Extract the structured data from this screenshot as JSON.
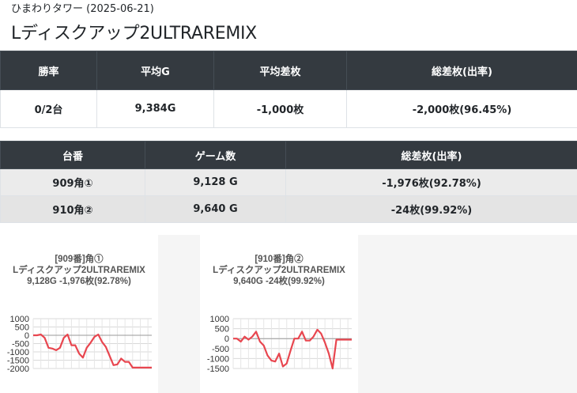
{
  "header": {
    "subtitle": "ひまわりタワー (2025-06-21)",
    "title": "Lディスクアップ2ULTRAREMIX"
  },
  "summary": {
    "headers": [
      "勝率",
      "平均G",
      "平均差枚",
      "総差枚(出率)"
    ],
    "values": [
      "0/2台",
      "9,384G",
      "-1,000枚",
      "-2,000枚(96.45%)"
    ]
  },
  "machines": {
    "headers": [
      "台番",
      "ゲーム数",
      "総差枚(出率)"
    ],
    "rows": [
      [
        "909角①",
        "9,128 G",
        "-1,976枚(92.78%)"
      ],
      [
        "910角②",
        "9,640 G",
        "-24枚(99.92%)"
      ]
    ]
  },
  "chart_data": [
    {
      "type": "line",
      "title_lines": [
        "[909番]角①",
        "Lディスクアップ2ULTRAREMIX",
        "9,128G -1,976枚(92.78%)"
      ],
      "color": "#e8464f",
      "ylim": [
        -2000,
        1000
      ],
      "yticks": [
        1000,
        500,
        0,
        -500,
        -1000,
        -1500,
        -2000
      ],
      "ytick_labels": [
        "1000",
        "500",
        "0",
        "-500",
        "-1000",
        "-1500",
        "-2000"
      ],
      "x": [
        0,
        1,
        2,
        3,
        4,
        5,
        6,
        7,
        8,
        9,
        10,
        11,
        12,
        13,
        14,
        15,
        16,
        17,
        18,
        19,
        20,
        21,
        22,
        23,
        24,
        25,
        26,
        27,
        28,
        29,
        30,
        31
      ],
      "y": [
        0,
        0,
        50,
        -150,
        -750,
        -800,
        -900,
        -750,
        -150,
        50,
        -600,
        -600,
        -1100,
        -1350,
        -750,
        -450,
        -100,
        50,
        -400,
        -700,
        -1250,
        -1800,
        -1750,
        -1400,
        -1600,
        -1600,
        -1950,
        -1950,
        -1950,
        -1950,
        -1950,
        -1950
      ]
    },
    {
      "type": "line",
      "title_lines": [
        "[910番]角②",
        "Lディスクアップ2ULTRAREMIX",
        "9,640G -24枚(99.92%)"
      ],
      "color": "#e8464f",
      "ylim": [
        -1500,
        1000
      ],
      "yticks": [
        1000,
        500,
        0,
        -500,
        -1000,
        -1500
      ],
      "ytick_labels": [
        "1000",
        "500",
        "0",
        "-500",
        "-1000",
        "-1500"
      ],
      "x": [
        0,
        1,
        2,
        3,
        4,
        5,
        6,
        7,
        8,
        9,
        10,
        11,
        12,
        13,
        14,
        15,
        16,
        17,
        18,
        19,
        20,
        21,
        22,
        23,
        24,
        25,
        26,
        27,
        28,
        29,
        30,
        31
      ],
      "y": [
        0,
        0,
        -150,
        100,
        -50,
        100,
        350,
        -150,
        -350,
        -850,
        -1100,
        -1150,
        -750,
        -1400,
        -1250,
        -600,
        0,
        0,
        350,
        -100,
        -100,
        100,
        450,
        250,
        -200,
        -750,
        -1500,
        -50,
        -50,
        -50,
        -50,
        -50
      ]
    }
  ]
}
